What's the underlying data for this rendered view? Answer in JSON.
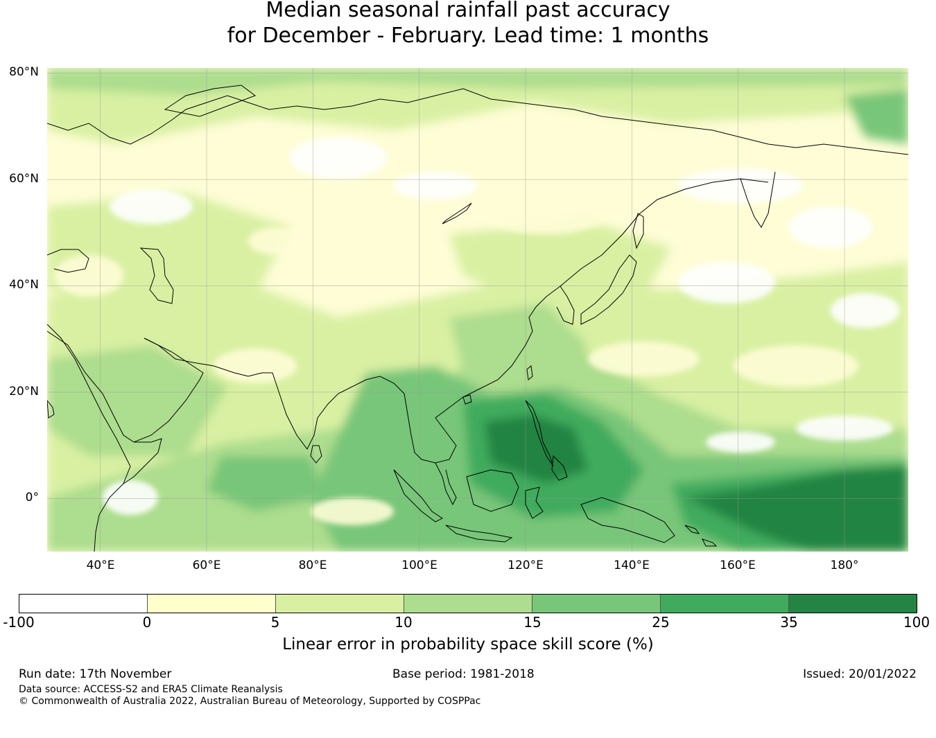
{
  "title": {
    "line1": "Median seasonal rainfall past accuracy",
    "line2": "for December - February. Lead time: 1 months"
  },
  "map": {
    "lat_labels": [
      "80°N",
      "60°N",
      "40°N",
      "20°N",
      "0°"
    ],
    "lon_labels": [
      "40°E",
      "60°E",
      "80°E",
      "100°E",
      "120°E",
      "140°E",
      "160°E",
      "180°"
    ],
    "lon_range": [
      30,
      192
    ],
    "lat_range": [
      -10,
      81
    ]
  },
  "colorbar": {
    "ticks": [
      "-100",
      "0",
      "5",
      "10",
      "15",
      "25",
      "35",
      "100"
    ],
    "colors": [
      "#ffffff",
      "#ffffcc",
      "#d9f0a3",
      "#addd8e",
      "#78c679",
      "#41ab5d",
      "#238443"
    ],
    "label": "Linear error in probability space skill score (%)"
  },
  "footer": {
    "run_date": "Run date: 17th November",
    "base_period": "Base period: 1981-2018",
    "issued": "Issued: 20/01/2022",
    "data_source": "Data source: ACCESS-S2 and ERA5 Climate Reanalysis",
    "copyright": "© Commonwealth of Australia 2022, Australian Bureau of Meteorology, Supported by COSPPac"
  }
}
